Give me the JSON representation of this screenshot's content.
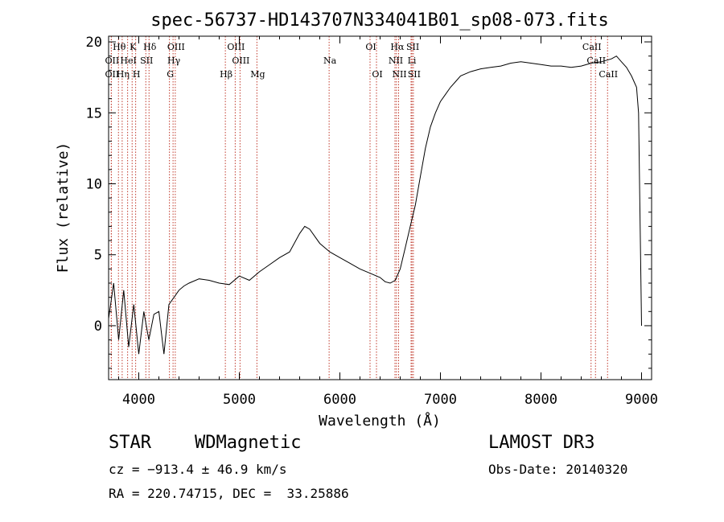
{
  "chart_data": {
    "type": "line",
    "title": "spec-56737-HD143707N334041B01_sp08-073.fits",
    "xlabel": "Wavelength (Å)",
    "ylabel": "Flux (relative)",
    "xlim": [
      3700,
      9100
    ],
    "ylim": [
      -3.8,
      20.4
    ],
    "xticks": [
      4000,
      5000,
      6000,
      7000,
      8000,
      9000
    ],
    "yticks": [
      0,
      5,
      10,
      15,
      20
    ],
    "grid": false,
    "legend": "none",
    "series": [
      {
        "color": "#000000",
        "x": [
          3700,
          3750,
          3800,
          3850,
          3900,
          3950,
          4000,
          4050,
          4100,
          4150,
          4200,
          4250,
          4300,
          4350,
          4400,
          4450,
          4500,
          4600,
          4700,
          4800,
          4900,
          5000,
          5100,
          5200,
          5300,
          5400,
          5500,
          5600,
          5650,
          5700,
          5800,
          5900,
          6000,
          6100,
          6200,
          6300,
          6400,
          6450,
          6500,
          6550,
          6600,
          6650,
          6700,
          6750,
          6800,
          6850,
          6900,
          6950,
          7000,
          7050,
          7100,
          7150,
          7200,
          7300,
          7400,
          7500,
          7600,
          7700,
          7800,
          7900,
          8000,
          8100,
          8200,
          8300,
          8400,
          8500,
          8600,
          8700,
          8750,
          8800,
          8850,
          8900,
          8950,
          8970,
          9000
        ],
        "y": [
          0.5,
          3.0,
          -1.0,
          2.5,
          -1.5,
          1.5,
          -2.0,
          1.0,
          -1.0,
          0.8,
          1.0,
          -2.0,
          1.5,
          2.0,
          2.5,
          2.8,
          3.0,
          3.3,
          3.2,
          3.0,
          2.9,
          3.5,
          3.2,
          3.8,
          4.3,
          4.8,
          5.2,
          6.5,
          7.0,
          6.8,
          5.8,
          5.2,
          4.8,
          4.4,
          4.0,
          3.7,
          3.4,
          3.1,
          3.0,
          3.2,
          4.0,
          5.5,
          7.0,
          8.5,
          10.5,
          12.5,
          14.0,
          15.0,
          15.8,
          16.3,
          16.8,
          17.2,
          17.6,
          17.9,
          18.1,
          18.2,
          18.3,
          18.5,
          18.6,
          18.5,
          18.4,
          18.3,
          18.3,
          18.2,
          18.3,
          18.5,
          18.6,
          18.8,
          19.0,
          18.6,
          18.2,
          17.6,
          16.8,
          15.0,
          0.0
        ]
      }
    ],
    "line_markers": [
      {
        "label": "Hθ",
        "x": 3798,
        "row": 0
      },
      {
        "label": "K",
        "x": 3934,
        "row": 0
      },
      {
        "label": "Hδ",
        "x": 4102,
        "row": 0
      },
      {
        "label": "OIII",
        "x": 4363,
        "row": 0
      },
      {
        "label": "OII",
        "x": 3727,
        "row": 1
      },
      {
        "label": "HeI",
        "x": 3889,
        "row": 1
      },
      {
        "label": "SII",
        "x": 4070,
        "row": 1
      },
      {
        "label": "Hγ",
        "x": 4341,
        "row": 1
      },
      {
        "label": "OII",
        "x": 3727,
        "row": 2
      },
      {
        "label": "Hη",
        "x": 3835,
        "row": 2
      },
      {
        "label": "H",
        "x": 3969,
        "row": 2
      },
      {
        "label": "G",
        "x": 4305,
        "row": 2
      },
      {
        "label": "OIII",
        "x": 4959,
        "row": 0
      },
      {
        "label": "OIII",
        "x": 5007,
        "row": 1
      },
      {
        "label": "Hβ",
        "x": 4861,
        "row": 2
      },
      {
        "label": "Mg",
        "x": 5175,
        "row": 2
      },
      {
        "label": "Na",
        "x": 5893,
        "row": 1
      },
      {
        "label": "OI",
        "x": 6300,
        "row": 0
      },
      {
        "label": "OI",
        "x": 6364,
        "row": 2
      },
      {
        "label": "Hα",
        "x": 6563,
        "row": 0
      },
      {
        "label": "SII",
        "x": 6717,
        "row": 0
      },
      {
        "label": "NII",
        "x": 6548,
        "row": 1
      },
      {
        "label": "Li",
        "x": 6708,
        "row": 1
      },
      {
        "label": "NII",
        "x": 6584,
        "row": 2
      },
      {
        "label": "SII",
        "x": 6731,
        "row": 2
      },
      {
        "label": "CaII",
        "x": 8498,
        "row": 0
      },
      {
        "label": "CaII",
        "x": 8542,
        "row": 1
      },
      {
        "label": "CaII",
        "x": 8662,
        "row": 2
      }
    ]
  },
  "info": {
    "object_class": "STAR",
    "subclass": "WDMagnetic",
    "survey": "LAMOST DR3",
    "cz": "cz = −913.4 ± 46.9 km/s",
    "obs_date": "Obs-Date: 20140320",
    "coords": "RA = 220.74715, DEC =  33.25886"
  }
}
